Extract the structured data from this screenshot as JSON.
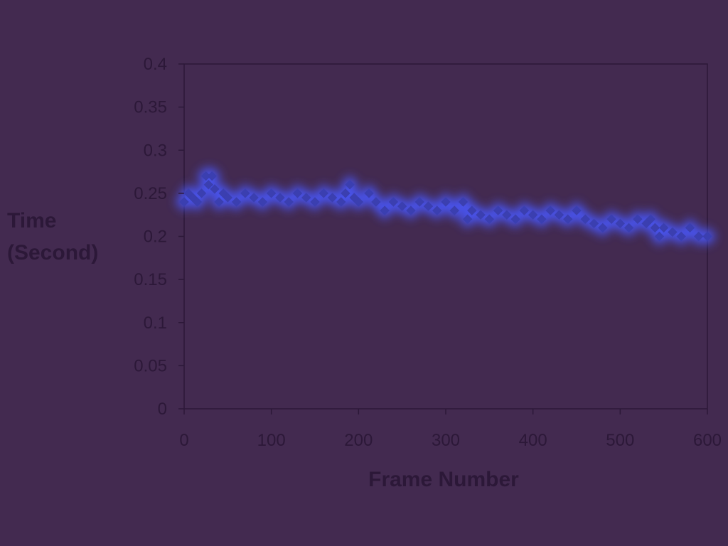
{
  "chart_data": {
    "type": "scatter",
    "title": "",
    "xlabel": "Frame Number",
    "ylabel_lines": [
      "Time",
      "(Second)"
    ],
    "xlim": [
      0,
      600
    ],
    "ylim": [
      0,
      0.4
    ],
    "x_ticks": [
      "0",
      "100",
      "200",
      "300",
      "400",
      "500",
      "600"
    ],
    "y_ticks": [
      "0",
      "0.05",
      "0.1",
      "0.15",
      "0.2",
      "0.25",
      "0.3",
      "0.35",
      "0.4"
    ],
    "grid": false,
    "legend": "none",
    "marker": "diamond",
    "colors": {
      "background": "#432a50",
      "marker": "#3b3fb0",
      "marker_glow": "#4a58ff",
      "axis": "#2c1838",
      "text": "#2c1838"
    },
    "series": [
      {
        "x": [
          0,
          5,
          10,
          15,
          20,
          25,
          28,
          32,
          35,
          40,
          45,
          50,
          60,
          70,
          80,
          90,
          100,
          110,
          120,
          130,
          140,
          150,
          160,
          170,
          180,
          185,
          190,
          195,
          200,
          212,
          220,
          230,
          240,
          250,
          260,
          270,
          280,
          290,
          300,
          310,
          320,
          325,
          330,
          340,
          350,
          360,
          370,
          380,
          390,
          400,
          410,
          420,
          430,
          440,
          450,
          460,
          470,
          480,
          490,
          500,
          510,
          520,
          530,
          535,
          540,
          545,
          550,
          560,
          570,
          580,
          590,
          600
        ],
        "y": [
          0.24,
          0.25,
          0.245,
          0.24,
          0.25,
          0.27,
          0.26,
          0.27,
          0.255,
          0.24,
          0.25,
          0.245,
          0.24,
          0.25,
          0.245,
          0.24,
          0.25,
          0.245,
          0.24,
          0.25,
          0.245,
          0.24,
          0.25,
          0.245,
          0.24,
          0.25,
          0.26,
          0.245,
          0.24,
          0.25,
          0.24,
          0.23,
          0.24,
          0.235,
          0.23,
          0.24,
          0.235,
          0.23,
          0.24,
          0.23,
          0.24,
          0.22,
          0.23,
          0.225,
          0.22,
          0.23,
          0.225,
          0.22,
          0.23,
          0.225,
          0.22,
          0.23,
          0.225,
          0.22,
          0.23,
          0.22,
          0.215,
          0.21,
          0.22,
          0.215,
          0.21,
          0.22,
          0.215,
          0.22,
          0.21,
          0.2,
          0.21,
          0.205,
          0.2,
          0.21,
          0.2,
          0.2
        ]
      }
    ]
  }
}
